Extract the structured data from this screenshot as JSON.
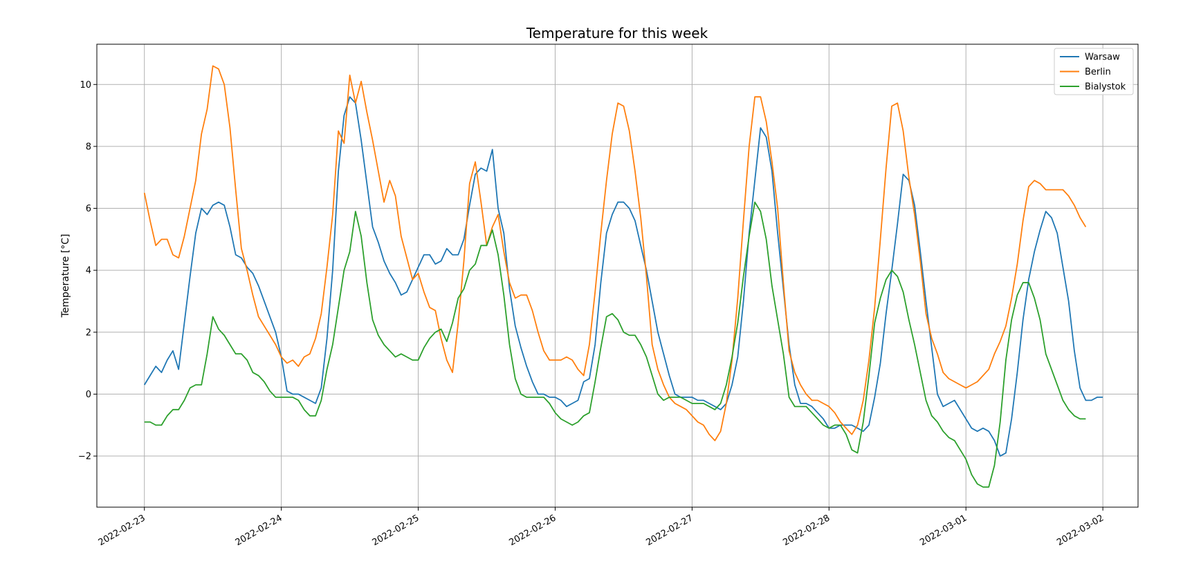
{
  "chart_data": {
    "type": "line",
    "title": "Temperature for this week",
    "xlabel": "",
    "ylabel": "Temperature [°C]",
    "x_start": "2022-02-23",
    "x_step_hours": 1,
    "xlim": [
      "2022-02-22 15:40",
      "2022-03-02 06:10"
    ],
    "ylim": [
      -3.65,
      11.3
    ],
    "x_ticks": [
      "2022-02-23",
      "2022-02-24",
      "2022-02-25",
      "2022-02-26",
      "2022-02-27",
      "2022-02-28",
      "2022-03-01",
      "2022-03-02"
    ],
    "y_ticks": [
      -2,
      0,
      2,
      4,
      6,
      8,
      10
    ],
    "y_tick_labels": [
      "−2",
      "0",
      "2",
      "4",
      "6",
      "8",
      "10"
    ],
    "grid": true,
    "legend_position": "top-right",
    "series": [
      {
        "name": "Warsaw",
        "color": "#1f77b4",
        "values": [
          0.3,
          0.6,
          0.9,
          0.7,
          1.1,
          1.4,
          0.8,
          2.3,
          3.8,
          5.2,
          6.0,
          5.8,
          6.1,
          6.2,
          6.1,
          5.4,
          4.5,
          4.4,
          4.1,
          3.9,
          3.5,
          3.0,
          2.5,
          2.0,
          1.2,
          0.1,
          0.0,
          0.0,
          -0.1,
          -0.2,
          -0.3,
          0.2,
          1.8,
          4.0,
          7.2,
          9.0,
          9.6,
          9.4,
          8.2,
          6.8,
          5.4,
          4.9,
          4.3,
          3.9,
          3.6,
          3.2,
          3.3,
          3.7,
          4.1,
          4.5,
          4.5,
          4.2,
          4.3,
          4.7,
          4.5,
          4.5,
          5.0,
          6.1,
          7.1,
          7.3,
          7.2,
          7.9,
          6.0,
          5.2,
          3.4,
          2.2,
          1.5,
          0.9,
          0.4,
          0.0,
          0.0,
          -0.1,
          -0.1,
          -0.2,
          -0.4,
          -0.3,
          -0.2,
          0.4,
          0.5,
          1.6,
          3.6,
          5.2,
          5.8,
          6.2,
          6.2,
          6.0,
          5.6,
          4.8,
          4.0,
          3.0,
          2.0,
          1.3,
          0.6,
          0.0,
          -0.1,
          -0.1,
          -0.1,
          -0.2,
          -0.2,
          -0.3,
          -0.4,
          -0.5,
          -0.3,
          0.3,
          1.2,
          3.0,
          5.2,
          6.9,
          8.6,
          8.3,
          7.2,
          5.2,
          3.4,
          1.6,
          0.3,
          -0.3,
          -0.3,
          -0.4,
          -0.6,
          -0.8,
          -1.1,
          -1.1,
          -1.0,
          -1.0,
          -1.0,
          -1.1,
          -1.2,
          -1.0,
          -0.1,
          1.0,
          2.6,
          4.0,
          5.5,
          7.1,
          6.9,
          6.1,
          4.6,
          3.0,
          1.5,
          0.0,
          -0.4,
          -0.3,
          -0.2,
          -0.5,
          -0.8,
          -1.1,
          -1.2,
          -1.1,
          -1.2,
          -1.5,
          -2.0,
          -1.9,
          -0.8,
          0.7,
          2.4,
          3.7,
          4.6,
          5.3,
          5.9,
          5.7,
          5.2,
          4.1,
          3.0,
          1.4,
          0.2,
          -0.2,
          -0.2,
          -0.1,
          -0.1
        ]
      },
      {
        "name": "Berlin",
        "color": "#ff7f0e",
        "values": [
          6.5,
          5.6,
          4.8,
          5.0,
          5.0,
          4.5,
          4.4,
          5.1,
          6.0,
          6.9,
          8.4,
          9.2,
          10.6,
          10.5,
          10.0,
          8.6,
          6.6,
          4.7,
          4.0,
          3.2,
          2.5,
          2.2,
          1.9,
          1.6,
          1.2,
          1.0,
          1.1,
          0.9,
          1.2,
          1.3,
          1.8,
          2.6,
          4.1,
          5.8,
          8.5,
          8.1,
          10.3,
          9.4,
          10.1,
          9.1,
          8.2,
          7.2,
          6.2,
          6.9,
          6.4,
          5.1,
          4.4,
          3.7,
          3.9,
          3.3,
          2.8,
          2.7,
          1.8,
          1.1,
          0.7,
          2.3,
          4.3,
          6.8,
          7.5,
          6.2,
          4.8,
          5.4,
          5.8,
          4.6,
          3.6,
          3.1,
          3.2,
          3.2,
          2.7,
          2.0,
          1.4,
          1.1,
          1.1,
          1.1,
          1.2,
          1.1,
          0.8,
          0.6,
          1.6,
          3.3,
          5.2,
          6.9,
          8.4,
          9.4,
          9.3,
          8.5,
          7.2,
          5.7,
          3.8,
          1.6,
          0.8,
          0.3,
          -0.1,
          -0.3,
          -0.4,
          -0.5,
          -0.7,
          -0.9,
          -1.0,
          -1.3,
          -1.5,
          -1.2,
          -0.3,
          1.1,
          3.1,
          5.6,
          8.0,
          9.6,
          9.6,
          8.8,
          7.5,
          6.0,
          3.6,
          1.4,
          0.7,
          0.3,
          0.0,
          -0.2,
          -0.2,
          -0.3,
          -0.4,
          -0.6,
          -0.9,
          -1.1,
          -1.3,
          -1.0,
          -0.2,
          1.1,
          2.8,
          5.0,
          7.3,
          9.3,
          9.4,
          8.5,
          7.0,
          5.8,
          4.3,
          2.6,
          1.8,
          1.3,
          0.7,
          0.5,
          0.4,
          0.3,
          0.2,
          0.3,
          0.4,
          0.6,
          0.8,
          1.3,
          1.7,
          2.2,
          3.1,
          4.2,
          5.6,
          6.7,
          6.9,
          6.8,
          6.6,
          6.6,
          6.6,
          6.6,
          6.4,
          6.1,
          5.7,
          5.4
        ]
      },
      {
        "name": "Bialystok",
        "color": "#2ca02c",
        "values": [
          -0.9,
          -0.9,
          -1.0,
          -1.0,
          -0.7,
          -0.5,
          -0.5,
          -0.2,
          0.2,
          0.3,
          0.3,
          1.3,
          2.5,
          2.1,
          1.9,
          1.6,
          1.3,
          1.3,
          1.1,
          0.7,
          0.6,
          0.4,
          0.1,
          -0.1,
          -0.1,
          -0.1,
          -0.1,
          -0.2,
          -0.5,
          -0.7,
          -0.7,
          -0.2,
          0.8,
          1.6,
          2.8,
          4.0,
          4.6,
          5.9,
          5.1,
          3.6,
          2.4,
          1.9,
          1.6,
          1.4,
          1.2,
          1.3,
          1.2,
          1.1,
          1.1,
          1.5,
          1.8,
          2.0,
          2.1,
          1.7,
          2.3,
          3.1,
          3.4,
          4.0,
          4.2,
          4.8,
          4.8,
          5.3,
          4.5,
          3.2,
          1.6,
          0.5,
          0.0,
          -0.1,
          -0.1,
          -0.1,
          -0.1,
          -0.3,
          -0.6,
          -0.8,
          -0.9,
          -1.0,
          -0.9,
          -0.7,
          -0.6,
          0.4,
          1.5,
          2.5,
          2.6,
          2.4,
          2.0,
          1.9,
          1.9,
          1.6,
          1.2,
          0.6,
          0.0,
          -0.2,
          -0.1,
          -0.1,
          -0.1,
          -0.2,
          -0.3,
          -0.3,
          -0.3,
          -0.4,
          -0.5,
          -0.3,
          0.3,
          1.2,
          2.3,
          3.8,
          5.1,
          6.2,
          5.9,
          5.0,
          3.5,
          2.4,
          1.3,
          -0.1,
          -0.4,
          -0.4,
          -0.4,
          -0.6,
          -0.8,
          -1.0,
          -1.1,
          -1.0,
          -1.0,
          -1.3,
          -1.8,
          -1.9,
          -0.9,
          0.6,
          2.3,
          3.1,
          3.7,
          4.0,
          3.8,
          3.3,
          2.4,
          1.6,
          0.7,
          -0.2,
          -0.7,
          -0.9,
          -1.2,
          -1.4,
          -1.5,
          -1.8,
          -2.1,
          -2.6,
          -2.9,
          -3.0,
          -3.0,
          -2.3,
          -0.9,
          1.1,
          2.4,
          3.2,
          3.6,
          3.6,
          3.1,
          2.4,
          1.3,
          0.8,
          0.3,
          -0.2,
          -0.5,
          -0.7,
          -0.8,
          -0.8
        ]
      }
    ]
  }
}
